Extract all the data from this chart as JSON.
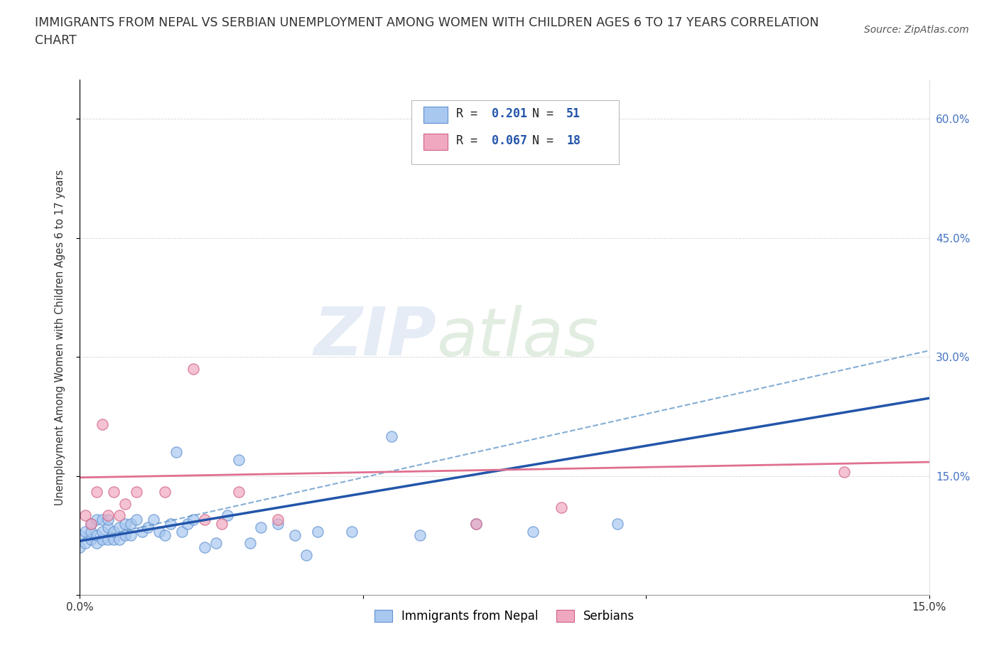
{
  "title_line1": "IMMIGRANTS FROM NEPAL VS SERBIAN UNEMPLOYMENT AMONG WOMEN WITH CHILDREN AGES 6 TO 17 YEARS CORRELATION",
  "title_line2": "CHART",
  "source": "Source: ZipAtlas.com",
  "ylabel": "Unemployment Among Women with Children Ages 6 to 17 years",
  "xlim": [
    0.0,
    0.15
  ],
  "ylim": [
    0.0,
    0.65
  ],
  "nepal_color": "#A8C8F0",
  "serbian_color": "#F0A8C0",
  "nepal_edge_color": "#6090D0",
  "serbian_edge_color": "#D06080",
  "nepal_trend_color": "#2255AA",
  "serbian_trend_color": "#E07090",
  "dashed_trend_color": "#6699CC",
  "watermark_zip": "ZIP",
  "watermark_atlas": "atlas",
  "R_nepal": 0.201,
  "N_nepal": 51,
  "R_serbian": 0.067,
  "N_serbian": 18,
  "nepal_x": [
    0.0,
    0.0,
    0.001,
    0.001,
    0.002,
    0.002,
    0.002,
    0.003,
    0.003,
    0.003,
    0.004,
    0.004,
    0.004,
    0.005,
    0.005,
    0.005,
    0.006,
    0.006,
    0.007,
    0.007,
    0.008,
    0.008,
    0.009,
    0.009,
    0.01,
    0.011,
    0.012,
    0.013,
    0.014,
    0.015,
    0.016,
    0.017,
    0.018,
    0.019,
    0.02,
    0.022,
    0.024,
    0.026,
    0.028,
    0.03,
    0.032,
    0.035,
    0.038,
    0.04,
    0.042,
    0.048,
    0.055,
    0.06,
    0.07,
    0.08,
    0.095
  ],
  "nepal_y": [
    0.06,
    0.075,
    0.065,
    0.08,
    0.07,
    0.08,
    0.09,
    0.065,
    0.075,
    0.095,
    0.07,
    0.08,
    0.095,
    0.07,
    0.085,
    0.095,
    0.07,
    0.08,
    0.07,
    0.085,
    0.075,
    0.09,
    0.075,
    0.09,
    0.095,
    0.08,
    0.085,
    0.095,
    0.08,
    0.075,
    0.09,
    0.18,
    0.08,
    0.09,
    0.095,
    0.06,
    0.065,
    0.1,
    0.17,
    0.065,
    0.085,
    0.09,
    0.075,
    0.05,
    0.08,
    0.08,
    0.2,
    0.075,
    0.09,
    0.08,
    0.09
  ],
  "serbian_x": [
    0.001,
    0.002,
    0.003,
    0.004,
    0.005,
    0.006,
    0.007,
    0.008,
    0.01,
    0.015,
    0.02,
    0.022,
    0.025,
    0.028,
    0.035,
    0.07,
    0.085,
    0.135
  ],
  "serbian_y": [
    0.1,
    0.09,
    0.13,
    0.215,
    0.1,
    0.13,
    0.1,
    0.115,
    0.13,
    0.13,
    0.285,
    0.095,
    0.09,
    0.13,
    0.095,
    0.09,
    0.11,
    0.155
  ],
  "nepal_trend_intercept": 0.068,
  "nepal_trend_slope": 1.2,
  "serbian_trend_intercept": 0.148,
  "serbian_trend_slope": 0.13,
  "nepal_dash_intercept": 0.068,
  "nepal_dash_slope": 1.6
}
